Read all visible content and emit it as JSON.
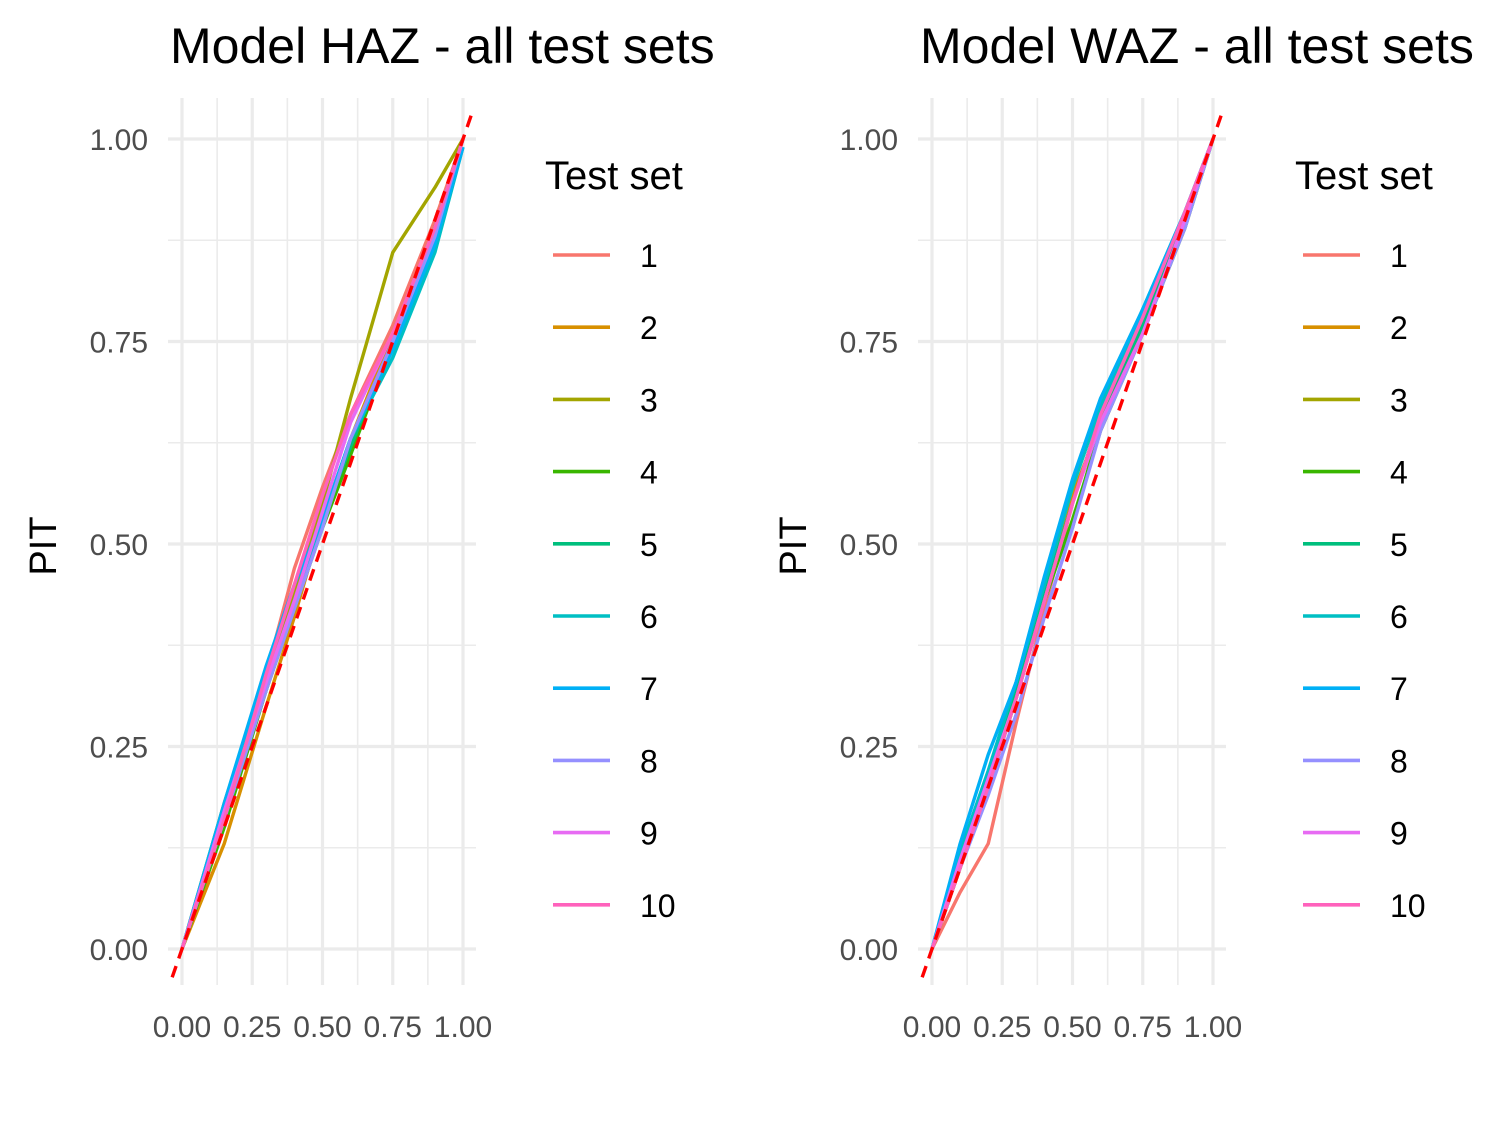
{
  "chart_data": [
    {
      "type": "line",
      "title": "Model HAZ - all test sets",
      "xlabel": "",
      "ylabel": "PIT",
      "xlim": [
        0,
        1
      ],
      "ylim": [
        0,
        1
      ],
      "x_ticks": [
        "0.00",
        "0.25",
        "0.50",
        "0.75",
        "1.00"
      ],
      "y_ticks": [
        "0.00",
        "0.25",
        "0.50",
        "0.75",
        "1.00"
      ],
      "grid": true,
      "legend_title": "Test set",
      "legend_position": "right",
      "reference_line": {
        "style": "dashed",
        "color": "#ff0000",
        "x": [
          0,
          1
        ],
        "y": [
          0,
          1
        ]
      },
      "series": [
        {
          "name": "1",
          "color": "#F8766D",
          "x": [
            0,
            0.15,
            0.3,
            0.4,
            0.5,
            0.6,
            0.75,
            0.9,
            1
          ],
          "y": [
            0,
            0.17,
            0.34,
            0.47,
            0.57,
            0.66,
            0.77,
            0.9,
            1
          ]
        },
        {
          "name": "2",
          "color": "#D89000",
          "x": [
            0,
            0.15,
            0.3,
            0.4,
            0.5,
            0.6,
            0.75,
            0.9,
            1
          ],
          "y": [
            0,
            0.13,
            0.3,
            0.41,
            0.53,
            0.63,
            0.76,
            0.89,
            1
          ]
        },
        {
          "name": "3",
          "color": "#A3A500",
          "x": [
            0,
            0.15,
            0.3,
            0.4,
            0.5,
            0.6,
            0.75,
            0.9,
            1
          ],
          "y": [
            0,
            0.18,
            0.34,
            0.44,
            0.55,
            0.68,
            0.86,
            0.94,
            1
          ]
        },
        {
          "name": "4",
          "color": "#39B600",
          "x": [
            0,
            0.15,
            0.3,
            0.4,
            0.5,
            0.6,
            0.75,
            0.9,
            1
          ],
          "y": [
            0,
            0.15,
            0.32,
            0.42,
            0.52,
            0.61,
            0.75,
            0.89,
            1
          ]
        },
        {
          "name": "5",
          "color": "#00BF7D",
          "x": [
            0,
            0.15,
            0.3,
            0.4,
            0.5,
            0.6,
            0.75,
            0.9,
            1
          ],
          "y": [
            0,
            0.16,
            0.32,
            0.43,
            0.53,
            0.62,
            0.75,
            0.89,
            1
          ]
        },
        {
          "name": "6",
          "color": "#00BFC4",
          "x": [
            0,
            0.15,
            0.3,
            0.4,
            0.5,
            0.6,
            0.75,
            0.9,
            1
          ],
          "y": [
            0,
            0.16,
            0.33,
            0.43,
            0.53,
            0.63,
            0.73,
            0.86,
            0.99
          ]
        },
        {
          "name": "7",
          "color": "#00B0F6",
          "x": [
            0,
            0.15,
            0.3,
            0.4,
            0.5,
            0.6,
            0.75,
            0.9,
            1
          ],
          "y": [
            0,
            0.18,
            0.35,
            0.45,
            0.53,
            0.63,
            0.74,
            0.87,
            0.99
          ]
        },
        {
          "name": "8",
          "color": "#9590FF",
          "x": [
            0,
            0.15,
            0.3,
            0.4,
            0.5,
            0.6,
            0.75,
            0.9,
            1
          ],
          "y": [
            0,
            0.16,
            0.32,
            0.42,
            0.52,
            0.63,
            0.75,
            0.88,
            1
          ]
        },
        {
          "name": "9",
          "color": "#E76BF3",
          "x": [
            0,
            0.15,
            0.3,
            0.4,
            0.5,
            0.6,
            0.75,
            0.9,
            1
          ],
          "y": [
            0,
            0.17,
            0.33,
            0.43,
            0.54,
            0.65,
            0.76,
            0.89,
            1
          ]
        },
        {
          "name": "10",
          "color": "#FF62BC",
          "x": [
            0,
            0.15,
            0.3,
            0.4,
            0.5,
            0.6,
            0.75,
            0.9,
            1
          ],
          "y": [
            0,
            0.16,
            0.34,
            0.45,
            0.56,
            0.66,
            0.76,
            0.89,
            1
          ]
        }
      ]
    },
    {
      "type": "line",
      "title": "Model WAZ - all test sets",
      "xlabel": "",
      "ylabel": "PIT",
      "xlim": [
        0,
        1
      ],
      "ylim": [
        0,
        1
      ],
      "x_ticks": [
        "0.00",
        "0.25",
        "0.50",
        "0.75",
        "1.00"
      ],
      "y_ticks": [
        "0.00",
        "0.25",
        "0.50",
        "0.75",
        "1.00"
      ],
      "grid": true,
      "legend_title": "Test set",
      "legend_position": "right",
      "reference_line": {
        "style": "dashed",
        "color": "#ff0000",
        "x": [
          0,
          1
        ],
        "y": [
          0,
          1
        ]
      },
      "series": [
        {
          "name": "1",
          "color": "#F8766D",
          "x": [
            0,
            0.1,
            0.2,
            0.3,
            0.4,
            0.5,
            0.6,
            0.75,
            0.9,
            1
          ],
          "y": [
            0,
            0.07,
            0.13,
            0.28,
            0.42,
            0.55,
            0.66,
            0.78,
            0.9,
            1
          ]
        },
        {
          "name": "2",
          "color": "#D89000",
          "x": [
            0,
            0.1,
            0.2,
            0.3,
            0.4,
            0.5,
            0.6,
            0.75,
            0.9,
            1
          ],
          "y": [
            0,
            0.1,
            0.2,
            0.33,
            0.45,
            0.56,
            0.65,
            0.77,
            0.9,
            1
          ]
        },
        {
          "name": "3",
          "color": "#A3A500",
          "x": [
            0,
            0.1,
            0.2,
            0.3,
            0.4,
            0.5,
            0.6,
            0.75,
            0.9,
            1
          ],
          "y": [
            0,
            0.1,
            0.21,
            0.32,
            0.45,
            0.52,
            0.65,
            0.77,
            0.9,
            1
          ]
        },
        {
          "name": "4",
          "color": "#39B600",
          "x": [
            0,
            0.1,
            0.2,
            0.3,
            0.4,
            0.5,
            0.6,
            0.75,
            0.9,
            1
          ],
          "y": [
            0,
            0.1,
            0.2,
            0.31,
            0.43,
            0.53,
            0.64,
            0.76,
            0.89,
            1
          ]
        },
        {
          "name": "5",
          "color": "#00BF7D",
          "x": [
            0,
            0.1,
            0.2,
            0.3,
            0.4,
            0.5,
            0.6,
            0.75,
            0.9,
            1
          ],
          "y": [
            0,
            0.11,
            0.21,
            0.32,
            0.44,
            0.55,
            0.66,
            0.77,
            0.9,
            1
          ]
        },
        {
          "name": "6",
          "color": "#00BFC4",
          "x": [
            0,
            0.1,
            0.2,
            0.3,
            0.4,
            0.5,
            0.6,
            0.75,
            0.9,
            1
          ],
          "y": [
            0,
            0.12,
            0.22,
            0.33,
            0.45,
            0.57,
            0.67,
            0.79,
            0.91,
            1
          ]
        },
        {
          "name": "7",
          "color": "#00B0F6",
          "x": [
            0,
            0.1,
            0.2,
            0.3,
            0.4,
            0.5,
            0.6,
            0.75,
            0.9,
            1
          ],
          "y": [
            0,
            0.13,
            0.24,
            0.33,
            0.46,
            0.58,
            0.68,
            0.79,
            0.91,
            1
          ]
        },
        {
          "name": "8",
          "color": "#9590FF",
          "x": [
            0,
            0.1,
            0.2,
            0.3,
            0.4,
            0.5,
            0.6,
            0.75,
            0.9,
            1
          ],
          "y": [
            0,
            0.1,
            0.19,
            0.29,
            0.41,
            0.52,
            0.64,
            0.76,
            0.89,
            1
          ]
        },
        {
          "name": "9",
          "color": "#E76BF3",
          "x": [
            0,
            0.1,
            0.2,
            0.3,
            0.4,
            0.5,
            0.6,
            0.75,
            0.9,
            1
          ],
          "y": [
            0,
            0.11,
            0.21,
            0.31,
            0.43,
            0.55,
            0.65,
            0.76,
            0.9,
            1
          ]
        },
        {
          "name": "10",
          "color": "#FF62BC",
          "x": [
            0,
            0.1,
            0.2,
            0.3,
            0.4,
            0.5,
            0.6,
            0.75,
            0.9,
            1
          ],
          "y": [
            0,
            0.1,
            0.2,
            0.31,
            0.43,
            0.55,
            0.66,
            0.78,
            0.91,
            1
          ]
        }
      ]
    }
  ]
}
